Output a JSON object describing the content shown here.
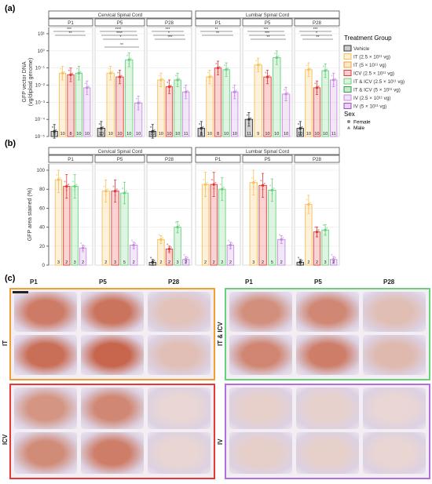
{
  "figure": {
    "panel_labels": [
      "(a)",
      "(b)",
      "(c)"
    ],
    "legend": {
      "treatment_title": "Treatment Group",
      "groups": [
        {
          "key": "Vehicle",
          "label": "Vehicle",
          "color": "#333333"
        },
        {
          "key": "IT1",
          "label": "IT (2.5 × 10¹¹ vg)",
          "color": "#f5c15a"
        },
        {
          "key": "IT2",
          "label": "IT (5 × 10¹¹ vg)",
          "color": "#f0a030"
        },
        {
          "key": "ICV",
          "label": "ICV (2.5 × 10¹¹ vg)",
          "color": "#e53935"
        },
        {
          "key": "ITICV1",
          "label": "IT & ICV (2.5 × 10¹¹ vg)",
          "color": "#69d07c"
        },
        {
          "key": "ITICV2",
          "label": "IT & ICV (5 × 10¹¹ vg)",
          "color": "#2e9e47"
        },
        {
          "key": "IV1",
          "label": "IV (2.5 × 10¹¹ vg)",
          "color": "#c58be0"
        },
        {
          "key": "IV2",
          "label": "IV (5 × 10¹¹ vg)",
          "color": "#9c4fc7"
        }
      ],
      "sex_title": "Sex",
      "sex": [
        {
          "label": "Female",
          "shape": "circle"
        },
        {
          "label": "Male",
          "shape": "triangle"
        }
      ]
    },
    "micrographs": {
      "row_groups": [
        "IT",
        "IT & ICV",
        "ICV",
        "IV"
      ],
      "ages": [
        "P1",
        "P5",
        "P28"
      ],
      "border_colors": {
        "IT": "#f0a030",
        "IT & ICV": "#69d07c",
        "ICV": "#e53935",
        "IV": "#b06fe0"
      },
      "stain_levels": {
        "IT": [
          0.85,
          0.9,
          0.25
        ],
        "IT & ICV": [
          0.7,
          0.75,
          0.3
        ],
        "ICV": [
          0.65,
          0.75,
          0.05
        ],
        "IV": [
          0.12,
          0.1,
          0.05
        ]
      }
    }
  },
  "chart_data": [
    {
      "type": "bar",
      "panel": "(a)",
      "ylabel": "GFP vector DNA\n(vg/diploid genome)",
      "yscale": "log",
      "ylim": [
        1e-05,
        10
      ],
      "yticks": [
        "10⁻⁵",
        "10⁻⁴",
        "10⁻³",
        "10⁻²",
        "10⁻¹",
        "10⁰",
        "10¹"
      ],
      "facets": [
        {
          "name": "Cervical Spinal Cord",
          "ages": [
            {
              "age": "P1",
              "bars": [
                {
                  "group": "Vehicle",
                  "value": 2e-05,
                  "n": "8"
                },
                {
                  "group": "IT1",
                  "value": 0.05,
                  "n": "10"
                },
                {
                  "group": "ICV",
                  "value": 0.04,
                  "n": "8"
                },
                {
                  "group": "ITICV1",
                  "value": 0.05,
                  "n": "10"
                },
                {
                  "group": "IV1",
                  "value": 0.007,
                  "n": "10"
                }
              ]
            },
            {
              "age": "P5",
              "bars": [
                {
                  "group": "Vehicle",
                  "value": 3e-05,
                  "n": "10"
                },
                {
                  "group": "IT1",
                  "value": 0.05,
                  "n": "10"
                },
                {
                  "group": "ICV",
                  "value": 0.03,
                  "n": "10"
                },
                {
                  "group": "ITICV1",
                  "value": 0.3,
                  "n": "10"
                },
                {
                  "group": "IV1",
                  "value": 0.0009,
                  "n": "10"
                }
              ]
            },
            {
              "age": "P28",
              "bars": [
                {
                  "group": "Vehicle",
                  "value": 2e-05,
                  "n": "10"
                },
                {
                  "group": "IT1",
                  "value": 0.02,
                  "n": "10"
                },
                {
                  "group": "ICV",
                  "value": 0.008,
                  "n": "10"
                },
                {
                  "group": "ITICV1",
                  "value": 0.02,
                  "n": "10"
                },
                {
                  "group": "IV1",
                  "value": 0.004,
                  "n": "11"
                }
              ]
            }
          ]
        },
        {
          "name": "Lumbar Spinal Cord",
          "ages": [
            {
              "age": "P1",
              "bars": [
                {
                  "group": "Vehicle",
                  "value": 3e-05,
                  "n": "8"
                },
                {
                  "group": "IT1",
                  "value": 0.03,
                  "n": "10"
                },
                {
                  "group": "ICV",
                  "value": 0.1,
                  "n": "8"
                },
                {
                  "group": "ITICV1",
                  "value": 0.08,
                  "n": "10"
                },
                {
                  "group": "IV1",
                  "value": 0.004,
                  "n": "10"
                }
              ]
            },
            {
              "age": "P5",
              "bars": [
                {
                  "group": "Vehicle",
                  "value": 0.0001,
                  "n": "11"
                },
                {
                  "group": "IT1",
                  "value": 0.15,
                  "n": "9"
                },
                {
                  "group": "ICV",
                  "value": 0.03,
                  "n": "10"
                },
                {
                  "group": "ITICV1",
                  "value": 0.4,
                  "n": "10"
                },
                {
                  "group": "IV1",
                  "value": 0.003,
                  "n": "10"
                }
              ]
            },
            {
              "age": "P28",
              "bars": [
                {
                  "group": "Vehicle",
                  "value": 3e-05,
                  "n": "10"
                },
                {
                  "group": "IT1",
                  "value": 0.08,
                  "n": "10"
                },
                {
                  "group": "ICV",
                  "value": 0.007,
                  "n": "10"
                },
                {
                  "group": "ITICV1",
                  "value": 0.07,
                  "n": "10"
                },
                {
                  "group": "IV1",
                  "value": 0.02,
                  "n": "11"
                }
              ]
            }
          ]
        }
      ],
      "significance": [
        "***",
        "**",
        "****",
        "****",
        "*",
        "**",
        "***",
        "*",
        "***",
        "**",
        "**",
        "***",
        "***",
        "**",
        "***",
        "*",
        "**"
      ]
    },
    {
      "type": "bar",
      "panel": "(b)",
      "ylabel": "GFP area stained (%)",
      "ylim": [
        0,
        100
      ],
      "yticks": [
        "0",
        "20",
        "40",
        "60",
        "80",
        "100"
      ],
      "facets": [
        {
          "name": "Cervical Spinal Cord",
          "ages": [
            {
              "age": "P1",
              "bars": [
                {
                  "group": "IT1",
                  "value": 90,
                  "n": "3"
                },
                {
                  "group": "ICV",
                  "value": 83,
                  "n": "2"
                },
                {
                  "group": "ITICV1",
                  "value": 83,
                  "n": "3"
                },
                {
                  "group": "IV1",
                  "value": 18,
                  "n": "2"
                }
              ]
            },
            {
              "age": "P5",
              "bars": [
                {
                  "group": "IT1",
                  "value": 78,
                  "n": "2"
                },
                {
                  "group": "ICV",
                  "value": 78,
                  "n": "3"
                },
                {
                  "group": "ITICV1",
                  "value": 76,
                  "n": "5"
                },
                {
                  "group": "IV1",
                  "value": 21,
                  "n": "2"
                }
              ]
            },
            {
              "age": "P28",
              "bars": [
                {
                  "group": "Vehicle",
                  "value": 3,
                  "n": "3"
                },
                {
                  "group": "IT1",
                  "value": 27,
                  "n": "2"
                },
                {
                  "group": "ICV",
                  "value": 17,
                  "n": "2"
                },
                {
                  "group": "ITICV1",
                  "value": 40,
                  "n": "3"
                },
                {
                  "group": "IV1",
                  "value": 6,
                  "n": "2"
                }
              ]
            }
          ]
        },
        {
          "name": "Lumbar Spinal Cord",
          "ages": [
            {
              "age": "P1",
              "bars": [
                {
                  "group": "IT1",
                  "value": 85,
                  "n": "2"
                },
                {
                  "group": "ICV",
                  "value": 85,
                  "n": "2"
                },
                {
                  "group": "ITICV1",
                  "value": 80,
                  "n": "2"
                },
                {
                  "group": "IV1",
                  "value": 21,
                  "n": "2"
                }
              ]
            },
            {
              "age": "P5",
              "bars": [
                {
                  "group": "IT1",
                  "value": 87,
                  "n": "3"
                },
                {
                  "group": "ICV",
                  "value": 84,
                  "n": "2"
                },
                {
                  "group": "ITICV1",
                  "value": 79,
                  "n": "5"
                },
                {
                  "group": "IV1",
                  "value": 27,
                  "n": "2"
                }
              ]
            },
            {
              "age": "P28",
              "bars": [
                {
                  "group": "Vehicle",
                  "value": 3,
                  "n": "3"
                },
                {
                  "group": "IT1",
                  "value": 64,
                  "n": "2"
                },
                {
                  "group": "ICV",
                  "value": 35,
                  "n": "2"
                },
                {
                  "group": "ITICV1",
                  "value": 37,
                  "n": "3"
                },
                {
                  "group": "IV1",
                  "value": 6,
                  "n": "2"
                }
              ]
            }
          ]
        }
      ]
    }
  ]
}
